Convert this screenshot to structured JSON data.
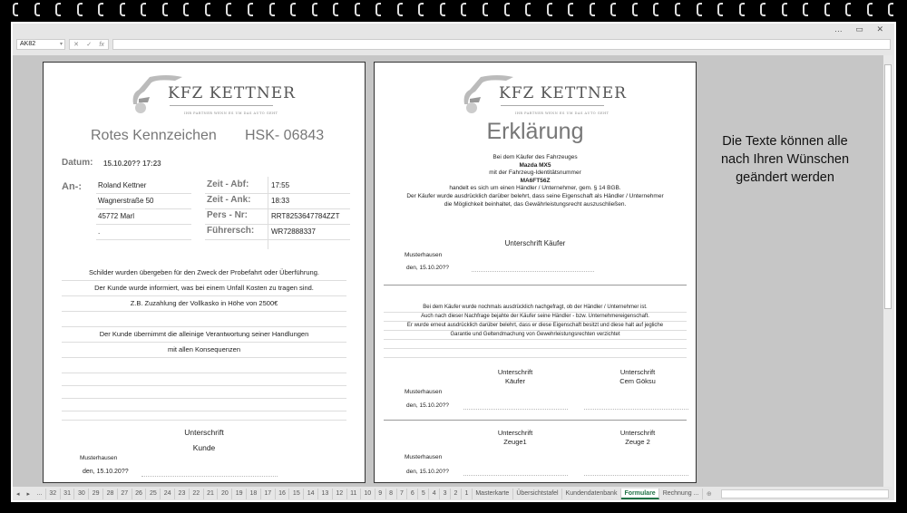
{
  "window": {
    "name_box": "AK82",
    "formula_buttons": [
      "✕",
      "✓",
      "fx"
    ],
    "controls": [
      "…",
      "▭",
      "✕"
    ]
  },
  "page1": {
    "logo": {
      "brand": "KFZ KETTNER",
      "slogan": "IHR PARTNER WENN ES UM DAS AUTO GEHT"
    },
    "title": "Rotes Kennzeichen",
    "plate": "HSK- 06843",
    "datum_label": "Datum:",
    "datum_value": "15.10.20?? 17:23",
    "an_label": "An-:",
    "address": [
      "Roland Kettner",
      "Wagnerstraße 50",
      "45772 Marl",
      "."
    ],
    "fields": [
      {
        "label": "Zeit - Abf:",
        "value": "17:55"
      },
      {
        "label": "Zeit - Ank:",
        "value": "18:33"
      },
      {
        "label": "Pers - Nr:",
        "value": "RRT8253647784ZZT"
      },
      {
        "label": "Führersch:",
        "value": "WR72888337"
      }
    ],
    "text": [
      "Schilder wurden übergeben für den Zweck der Probefahrt oder Überführung.",
      "Der Kunde wurde informiert, was bei einem Unfall  Kosten zu tragen sind.",
      "Z.B. Zuzahlung der Vollkasko in Höhe von 2500€",
      "Der Kunde übernimmt die alleinige Verantwortung seiner Handlungen",
      "mit allen Konsequenzen"
    ],
    "sig_line1": "Unterschrift",
    "sig_line2": "Kunde",
    "place": "Musterhausen",
    "date": "den,  15.10.20??"
  },
  "page2": {
    "logo": {
      "brand": "KFZ KETTNER",
      "slogan": "IHR PARTNER WENN ES UM DAS AUTO GEHT"
    },
    "title": "Erklärung",
    "intro": [
      "Bei dem Käufer des Fahrzeuges",
      "Mazda MX5",
      "mit der Fahrzeug-Identitätsnummer",
      "MA6FT56Z",
      "handelt es sich um einen Händler / Unternehmer, gem. § 14 BGB.",
      "Der Käufer wurde ausdrücklich darüber belehrt, dass seine Eigenschaft als Händler / Unternehmer",
      "die Möglichkeit beinhaltet, das Gewährleistungsrecht auszuschließen."
    ],
    "sig1": "Unterschrift Käufer",
    "place": "Musterhausen",
    "date": "den,  15.10.20??",
    "text2": [
      "Bei dem Käufer wurde nochmals ausdrücklich nachgefragt, ob der Händler / Unternehmer ist.",
      "Auch  nach dieser Nachfrage bejahte der Käufer seine Händler - bzw. Unternehmereigenschaft.",
      "Er wurde erneut ausdrücklich darüber belehrt, dass er diese Eigenschaft besitzt und diese halt auf jegliche",
      "Garantie und Geltendmachung von Gewehrleistungsrechten verzichtet"
    ],
    "sig_a1": "Unterschrift",
    "sig_a2": "Käufer",
    "sig_b1": "Unterschrift",
    "sig_b2": "Cem Göksu",
    "sig_c1": "Unterschrift",
    "sig_c2": "Zeuge1",
    "sig_d1": "Unterschrift",
    "sig_d2": "Zeuge 2"
  },
  "sidenote": [
    "Die Texte können alle",
    "nach Ihren Wünschen",
    "geändert werden"
  ],
  "tabs": [
    "...",
    "32",
    "31",
    "30",
    "29",
    "28",
    "27",
    "26",
    "25",
    "24",
    "23",
    "22",
    "21",
    "20",
    "19",
    "18",
    "17",
    "16",
    "15",
    "14",
    "13",
    "12",
    "11",
    "10",
    "9",
    "8",
    "7",
    "6",
    "5",
    "4",
    "3",
    "2",
    "1",
    "Masterkarte",
    "Übersichtstafel",
    "Kundendatenbank",
    "Formulare",
    "Rechnung ..."
  ],
  "active_tab": "Formulare",
  "accent": "#217346"
}
